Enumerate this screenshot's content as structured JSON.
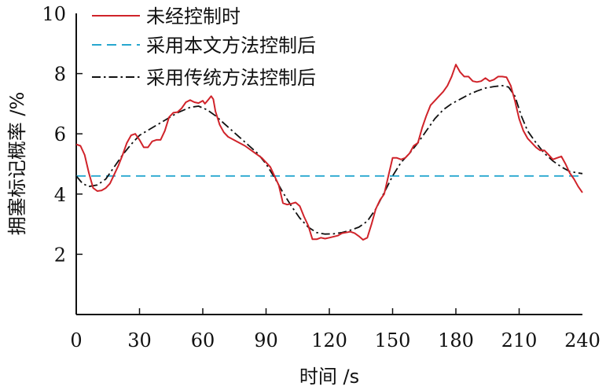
{
  "chart_data": {
    "type": "line",
    "xlabel": "时间 /s",
    "ylabel": "拥塞标记概率 /%",
    "xlim": [
      0,
      240
    ],
    "ylim": [
      0,
      10
    ],
    "xticks": [
      0,
      30,
      60,
      90,
      120,
      150,
      180,
      210,
      240
    ],
    "yticks": [
      2,
      4,
      6,
      8,
      10
    ],
    "grid": false,
    "legend_position": "top-left",
    "series": [
      {
        "name": "未经控制时",
        "color": "#d0232a",
        "style": "solid",
        "points": [
          [
            0,
            5.65
          ],
          [
            2,
            5.6
          ],
          [
            4,
            5.3
          ],
          [
            6,
            4.7
          ],
          [
            8,
            4.2
          ],
          [
            10,
            4.1
          ],
          [
            12,
            4.12
          ],
          [
            14,
            4.2
          ],
          [
            16,
            4.35
          ],
          [
            18,
            4.65
          ],
          [
            20,
            4.95
          ],
          [
            22,
            5.3
          ],
          [
            24,
            5.7
          ],
          [
            26,
            5.95
          ],
          [
            28,
            6.0
          ],
          [
            30,
            5.8
          ],
          [
            32,
            5.55
          ],
          [
            34,
            5.55
          ],
          [
            36,
            5.75
          ],
          [
            38,
            5.8
          ],
          [
            40,
            5.8
          ],
          [
            42,
            6.1
          ],
          [
            44,
            6.55
          ],
          [
            46,
            6.7
          ],
          [
            48,
            6.72
          ],
          [
            50,
            6.85
          ],
          [
            52,
            7.05
          ],
          [
            54,
            7.12
          ],
          [
            56,
            7.05
          ],
          [
            58,
            7.02
          ],
          [
            60,
            7.1
          ],
          [
            61,
            7.0
          ],
          [
            62,
            7.08
          ],
          [
            64,
            7.25
          ],
          [
            65,
            7.15
          ],
          [
            66,
            6.75
          ],
          [
            68,
            6.3
          ],
          [
            70,
            6.05
          ],
          [
            72,
            5.9
          ],
          [
            76,
            5.75
          ],
          [
            80,
            5.6
          ],
          [
            84,
            5.4
          ],
          [
            88,
            5.2
          ],
          [
            92,
            4.9
          ],
          [
            94,
            4.6
          ],
          [
            96,
            4.3
          ],
          [
            98,
            3.7
          ],
          [
            100,
            3.65
          ],
          [
            102,
            3.68
          ],
          [
            104,
            3.72
          ],
          [
            106,
            3.6
          ],
          [
            108,
            3.25
          ],
          [
            110,
            2.95
          ],
          [
            112,
            2.5
          ],
          [
            114,
            2.5
          ],
          [
            116,
            2.55
          ],
          [
            118,
            2.52
          ],
          [
            120,
            2.55
          ],
          [
            124,
            2.62
          ],
          [
            126,
            2.7
          ],
          [
            130,
            2.75
          ],
          [
            132,
            2.7
          ],
          [
            134,
            2.6
          ],
          [
            136,
            2.48
          ],
          [
            138,
            2.55
          ],
          [
            140,
            3.0
          ],
          [
            142,
            3.5
          ],
          [
            144,
            3.8
          ],
          [
            146,
            4.0
          ],
          [
            148,
            4.6
          ],
          [
            150,
            5.2
          ],
          [
            152,
            5.2
          ],
          [
            154,
            5.15
          ],
          [
            156,
            5.2
          ],
          [
            158,
            5.35
          ],
          [
            160,
            5.6
          ],
          [
            162,
            5.7
          ],
          [
            164,
            6.2
          ],
          [
            166,
            6.6
          ],
          [
            168,
            6.95
          ],
          [
            170,
            7.1
          ],
          [
            172,
            7.25
          ],
          [
            174,
            7.4
          ],
          [
            176,
            7.6
          ],
          [
            178,
            7.9
          ],
          [
            180,
            8.3
          ],
          [
            182,
            8.05
          ],
          [
            184,
            7.9
          ],
          [
            186,
            7.9
          ],
          [
            188,
            7.75
          ],
          [
            190,
            7.72
          ],
          [
            192,
            7.75
          ],
          [
            194,
            7.85
          ],
          [
            196,
            7.75
          ],
          [
            198,
            7.8
          ],
          [
            200,
            7.9
          ],
          [
            202,
            7.9
          ],
          [
            204,
            7.88
          ],
          [
            206,
            7.6
          ],
          [
            208,
            7.1
          ],
          [
            210,
            6.5
          ],
          [
            212,
            6.1
          ],
          [
            214,
            5.85
          ],
          [
            216,
            5.7
          ],
          [
            218,
            5.55
          ],
          [
            220,
            5.45
          ],
          [
            222,
            5.45
          ],
          [
            224,
            5.3
          ],
          [
            226,
            5.15
          ],
          [
            228,
            5.2
          ],
          [
            230,
            5.25
          ],
          [
            232,
            5.0
          ],
          [
            234,
            4.7
          ],
          [
            236,
            4.5
          ],
          [
            238,
            4.25
          ],
          [
            240,
            4.05
          ]
        ]
      },
      {
        "name": "采用本文方法控制后",
        "color": "#27a7cf",
        "style": "dashed",
        "points": [
          [
            0,
            4.6
          ],
          [
            240,
            4.6
          ]
        ]
      },
      {
        "name": "采用传统方法控制后",
        "color": "#111111",
        "style": "dashdot",
        "points": [
          [
            0,
            4.6
          ],
          [
            3,
            4.35
          ],
          [
            6,
            4.25
          ],
          [
            10,
            4.3
          ],
          [
            14,
            4.5
          ],
          [
            18,
            4.9
          ],
          [
            22,
            5.3
          ],
          [
            26,
            5.65
          ],
          [
            30,
            5.95
          ],
          [
            36,
            6.2
          ],
          [
            42,
            6.45
          ],
          [
            48,
            6.7
          ],
          [
            54,
            6.88
          ],
          [
            58,
            6.92
          ],
          [
            62,
            6.8
          ],
          [
            66,
            6.6
          ],
          [
            70,
            6.35
          ],
          [
            74,
            6.1
          ],
          [
            78,
            5.85
          ],
          [
            82,
            5.6
          ],
          [
            86,
            5.35
          ],
          [
            90,
            5.0
          ],
          [
            94,
            4.55
          ],
          [
            98,
            4.05
          ],
          [
            102,
            3.6
          ],
          [
            106,
            3.2
          ],
          [
            110,
            2.9
          ],
          [
            114,
            2.72
          ],
          [
            118,
            2.67
          ],
          [
            122,
            2.68
          ],
          [
            126,
            2.72
          ],
          [
            130,
            2.8
          ],
          [
            134,
            2.9
          ],
          [
            138,
            3.1
          ],
          [
            142,
            3.5
          ],
          [
            146,
            4.05
          ],
          [
            150,
            4.6
          ],
          [
            154,
            5.05
          ],
          [
            158,
            5.35
          ],
          [
            162,
            5.7
          ],
          [
            166,
            6.1
          ],
          [
            170,
            6.5
          ],
          [
            174,
            6.8
          ],
          [
            178,
            7.0
          ],
          [
            182,
            7.15
          ],
          [
            186,
            7.3
          ],
          [
            190,
            7.42
          ],
          [
            194,
            7.52
          ],
          [
            198,
            7.57
          ],
          [
            202,
            7.6
          ],
          [
            205,
            7.55
          ],
          [
            208,
            7.25
          ],
          [
            211,
            6.6
          ],
          [
            214,
            6.1
          ],
          [
            218,
            5.7
          ],
          [
            222,
            5.35
          ],
          [
            226,
            5.1
          ],
          [
            230,
            4.9
          ],
          [
            234,
            4.75
          ],
          [
            238,
            4.7
          ],
          [
            240,
            4.68
          ]
        ]
      }
    ]
  }
}
